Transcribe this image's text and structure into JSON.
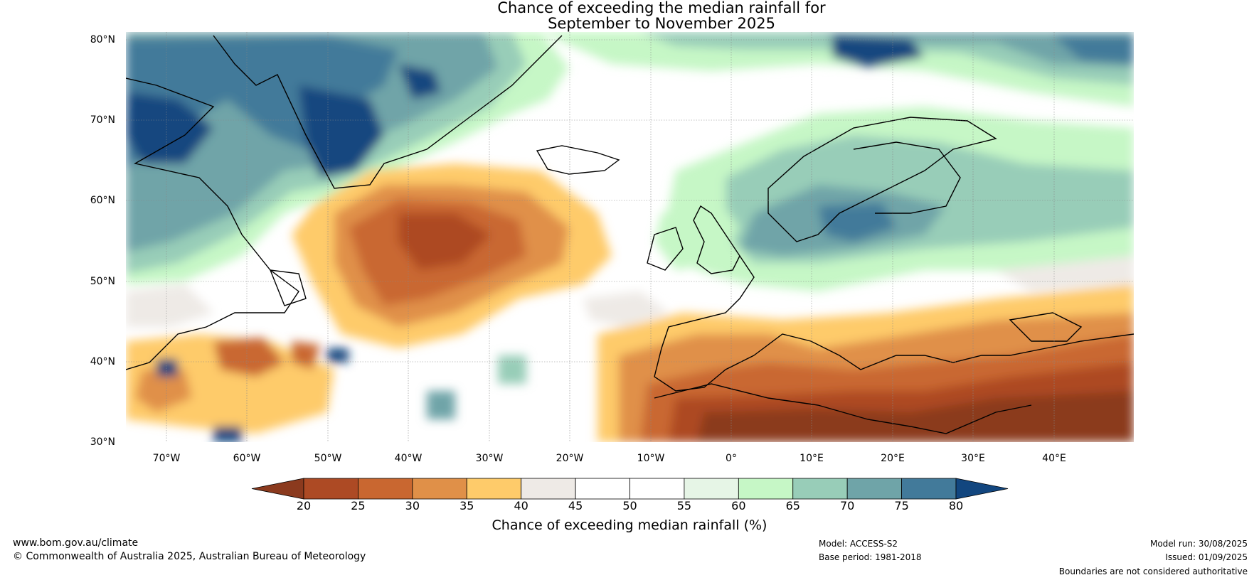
{
  "title_line1": "Chance of exceeding the median rainfall for",
  "title_line2": "September to November 2025",
  "lat_labels": [
    "80°N",
    "70°N",
    "60°N",
    "50°N",
    "40°N",
    "30°N"
  ],
  "lon_labels": [
    "70°W",
    "60°W",
    "50°W",
    "40°W",
    "30°W",
    "20°W",
    "10°W",
    "0°",
    "10°E",
    "20°E",
    "30°E",
    "40°E"
  ],
  "map_extent": {
    "lon_min": -75,
    "lon_max": 50,
    "lat_min": 30,
    "lat_max": 81
  },
  "colorbar": {
    "ticks": [
      "20",
      "25",
      "30",
      "35",
      "40",
      "45",
      "50",
      "55",
      "60",
      "65",
      "70",
      "75",
      "80"
    ],
    "colors": [
      "#8b3a1e",
      "#ad4a24",
      "#c96730",
      "#e09048",
      "#fecb6a",
      "#eeeae6",
      "#ffffff",
      "#ffffff",
      "#e6f5e6",
      "#c6f7c6",
      "#98cdb8",
      "#6fa4a8",
      "#427a9a",
      "#12467f"
    ],
    "label": "Chance of exceeding median rainfall (%)"
  },
  "footer": {
    "website": "www.bom.gov.au/climate",
    "copyright": "© Commonwealth of Australia 2025, Australian Bureau of Meteorology",
    "model": "Model: ACCESS-S2",
    "base_period": "Base period: 1981-2018",
    "model_run": "Model run: 30/08/2025",
    "issued": "Issued: 01/09/2025",
    "disclaimer": "Boundaries are not considered authoritative"
  }
}
